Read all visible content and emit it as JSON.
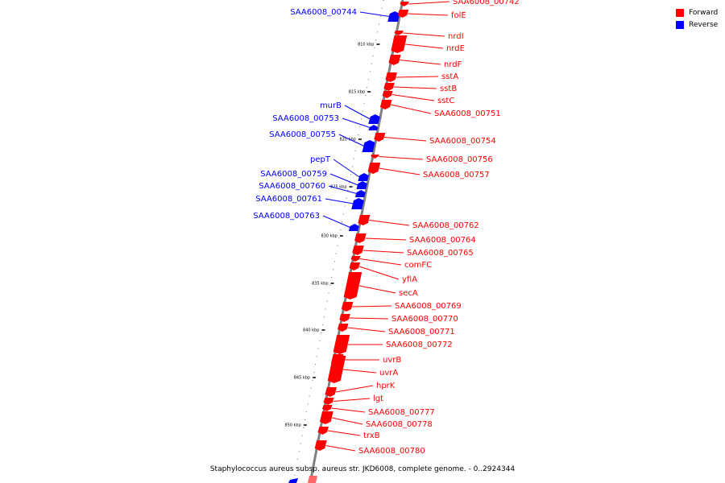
{
  "colors": {
    "forward": "#ff0000",
    "reverse": "#0000ff",
    "axis": "#808080"
  },
  "legend": [
    {
      "label": "Forward",
      "color": "#ff0000"
    },
    {
      "label": "Reverse",
      "color": "#0000ff"
    }
  ],
  "caption": "Staphylococcus aureus subsp. aureus str. JKD6008, complete genome. - 0..2924344",
  "ticks": [
    "810 kbp",
    "815 kbp",
    "820 kbp",
    "825 kbp",
    "830 kbp",
    "835 kbp",
    "840 kbp",
    "845 kbp",
    "850 kbp"
  ],
  "genes": [
    {
      "name": "SAA6008_00742",
      "strand": "forward"
    },
    {
      "name": "SAA6008_00744",
      "strand": "reverse"
    },
    {
      "name": "folE",
      "strand": "forward"
    },
    {
      "name": "nrdI",
      "strand": "forward"
    },
    {
      "name": "nrdE",
      "strand": "forward"
    },
    {
      "name": "nrdF",
      "strand": "forward"
    },
    {
      "name": "sstA",
      "strand": "forward"
    },
    {
      "name": "sstB",
      "strand": "forward"
    },
    {
      "name": "sstC",
      "strand": "forward"
    },
    {
      "name": "SAA6008_00751",
      "strand": "forward"
    },
    {
      "name": "murB",
      "strand": "reverse"
    },
    {
      "name": "SAA6008_00753",
      "strand": "reverse"
    },
    {
      "name": "SAA6008_00754",
      "strand": "forward"
    },
    {
      "name": "SAA6008_00755",
      "strand": "reverse"
    },
    {
      "name": "SAA6008_00756",
      "strand": "forward"
    },
    {
      "name": "SAA6008_00757",
      "strand": "forward"
    },
    {
      "name": "pepT",
      "strand": "reverse"
    },
    {
      "name": "SAA6008_00759",
      "strand": "reverse"
    },
    {
      "name": "SAA6008_00760",
      "strand": "reverse"
    },
    {
      "name": "SAA6008_00761",
      "strand": "reverse"
    },
    {
      "name": "SAA6008_00763",
      "strand": "reverse"
    },
    {
      "name": "SAA6008_00762",
      "strand": "forward"
    },
    {
      "name": "SAA6008_00764",
      "strand": "forward"
    },
    {
      "name": "SAA6008_00765",
      "strand": "forward"
    },
    {
      "name": "comFC",
      "strand": "forward"
    },
    {
      "name": "yfiA",
      "strand": "forward"
    },
    {
      "name": "secA",
      "strand": "forward"
    },
    {
      "name": "SAA6008_00769",
      "strand": "forward"
    },
    {
      "name": "SAA6008_00770",
      "strand": "forward"
    },
    {
      "name": "SAA6008_00771",
      "strand": "forward"
    },
    {
      "name": "SAA6008_00772",
      "strand": "forward"
    },
    {
      "name": "uvrB",
      "strand": "forward"
    },
    {
      "name": "uvrA",
      "strand": "forward"
    },
    {
      "name": "hprK",
      "strand": "forward"
    },
    {
      "name": "lgt",
      "strand": "forward"
    },
    {
      "name": "SAA6008_00777",
      "strand": "forward"
    },
    {
      "name": "SAA6008_00778",
      "strand": "forward"
    },
    {
      "name": "trxB",
      "strand": "forward"
    },
    {
      "name": "SAA6008_00780",
      "strand": "forward"
    }
  ]
}
